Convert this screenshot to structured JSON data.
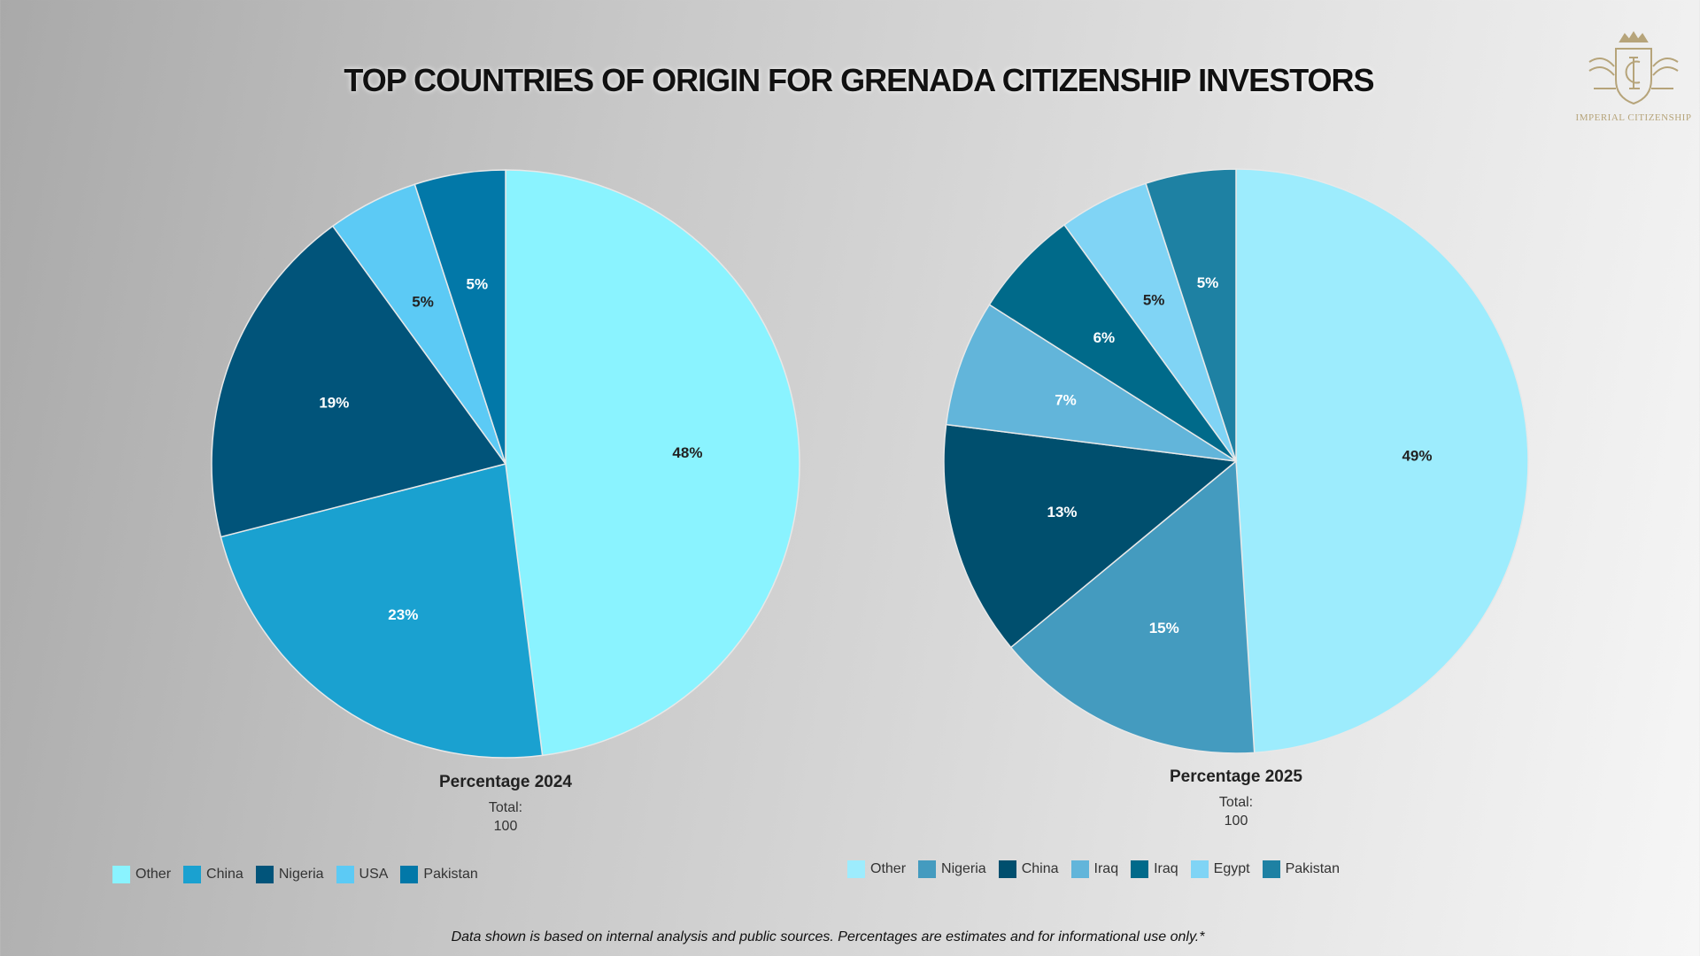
{
  "title": "TOP COUNTRIES OF ORIGIN FOR GRENADA CITIZENSHIP INVESTORS",
  "logo": {
    "text": "IMPERIAL CITIZENSHIP"
  },
  "footnote": "Data shown is based on internal analysis and public sources. Percentages are estimates and for informational use only.*",
  "chart_data": [
    {
      "type": "pie",
      "title": "Percentage 2024",
      "total_label": "Total:",
      "total_value": "100",
      "categories": [
        "Other",
        "China",
        "Nigeria",
        "USA",
        "Pakistan"
      ],
      "values": [
        48,
        23,
        19,
        5,
        5
      ],
      "labels": [
        "48%",
        "23%",
        "19%",
        "5%",
        "5%"
      ],
      "colors": [
        "#8af3ff",
        "#1aa1d0",
        "#01547a",
        "#5ccaf5",
        "#0278a8"
      ],
      "label_colors": [
        "#222222",
        "#ffffff",
        "#ffffff",
        "#222222",
        "#ffffff"
      ],
      "legend_position": "bottom"
    },
    {
      "type": "pie",
      "title": "Percentage 2025",
      "total_label": "Total:",
      "total_value": "100",
      "categories": [
        "Other",
        "Nigeria",
        "China",
        "Iraq",
        "Iraq",
        "Egypt",
        "Pakistan"
      ],
      "values": [
        49,
        15,
        13,
        7,
        6,
        5,
        5
      ],
      "labels": [
        "49%",
        "15%",
        "13%",
        "7%",
        "6%",
        "5%",
        "5%"
      ],
      "colors": [
        "#9decfd",
        "#449bbf",
        "#004f6e",
        "#62b5da",
        "#006a8a",
        "#80d4f5",
        "#1e81a3"
      ],
      "label_colors": [
        "#222222",
        "#ffffff",
        "#ffffff",
        "#ffffff",
        "#ffffff",
        "#222222",
        "#ffffff"
      ],
      "legend_position": "bottom"
    }
  ]
}
